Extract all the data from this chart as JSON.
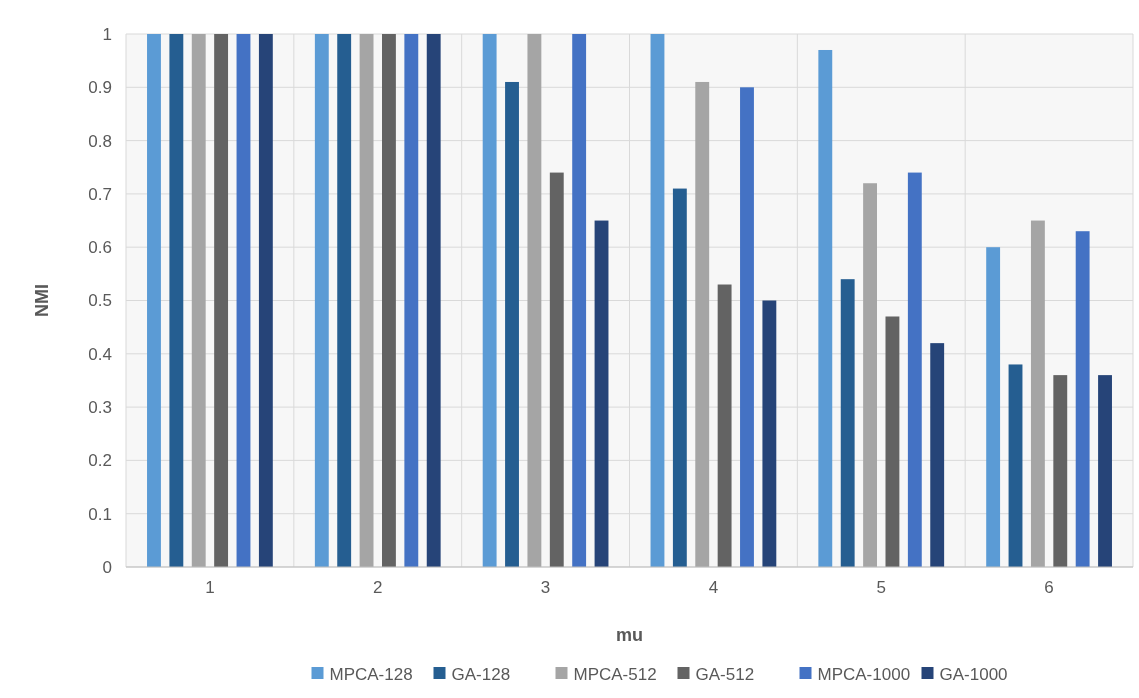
{
  "chart_data": {
    "type": "bar",
    "xlabel": "mu",
    "ylabel": "NMI",
    "categories": [
      "1",
      "2",
      "3",
      "4",
      "5",
      "6"
    ],
    "series": [
      {
        "name": "MPCA-128",
        "color": "#5b9bd5",
        "values": [
          1,
          1,
          1,
          1,
          0.97,
          0.6
        ]
      },
      {
        "name": "GA-128",
        "color": "#255e91",
        "values": [
          1,
          1,
          0.91,
          0.71,
          0.54,
          0.38
        ]
      },
      {
        "name": "MPCA-512",
        "color": "#a5a5a5",
        "values": [
          1,
          1,
          1,
          0.91,
          0.72,
          0.65
        ]
      },
      {
        "name": "GA-512",
        "color": "#636363",
        "values": [
          1,
          1,
          0.74,
          0.53,
          0.47,
          0.36
        ]
      },
      {
        "name": "MPCA-1000",
        "color": "#4472c4",
        "values": [
          1,
          1,
          1,
          0.9,
          0.74,
          0.63
        ]
      },
      {
        "name": "GA-1000",
        "color": "#264478",
        "values": [
          1,
          1,
          0.65,
          0.5,
          0.42,
          0.36
        ]
      }
    ],
    "ylim": [
      0,
      1
    ],
    "yticks": [
      0,
      0.1,
      0.2,
      0.3,
      0.4,
      0.5,
      0.6,
      0.7,
      0.8,
      0.9,
      1
    ],
    "grid": true,
    "legend": "bottom"
  }
}
